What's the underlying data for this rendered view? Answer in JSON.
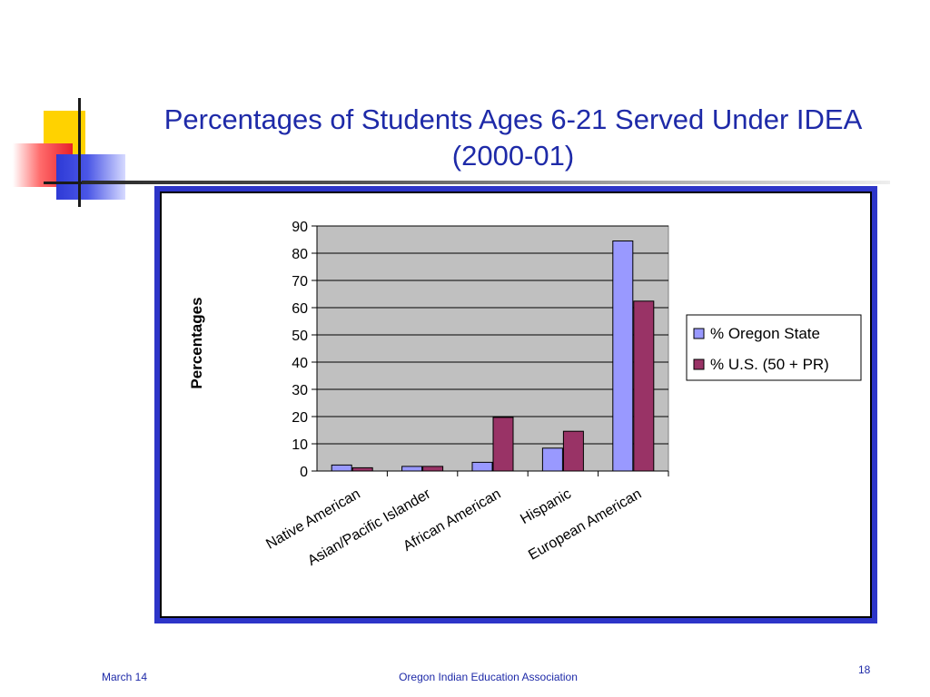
{
  "slide": {
    "title_line1": "Percentages of Students Ages 6-21 Served Under IDEA",
    "title_line2": "(2000-01)",
    "title_color": "#1e2aa8"
  },
  "footer": {
    "date": "March 14",
    "organization": "Oregon Indian Education Association",
    "page_number": "18"
  },
  "chart_data": {
    "type": "bar",
    "title": "",
    "xlabel": "",
    "ylabel": "Percentages",
    "ylim": [
      0,
      90
    ],
    "yticks": [
      0,
      10,
      20,
      30,
      40,
      50,
      60,
      70,
      80,
      90
    ],
    "categories": [
      "Native American",
      "Asian/Pacific Islander",
      "African American",
      "Hispanic",
      "European American"
    ],
    "series": [
      {
        "name": "% Oregon State",
        "color": "#9999ff",
        "values": [
          2.2,
          1.7,
          3.2,
          8.4,
          84.5
        ]
      },
      {
        "name": "% U.S. (50 + PR)",
        "color": "#993366",
        "values": [
          1.2,
          1.7,
          19.7,
          14.6,
          62.4
        ]
      }
    ],
    "grid": true,
    "plot_background": "#c0c0c0",
    "legend_position": "right"
  }
}
